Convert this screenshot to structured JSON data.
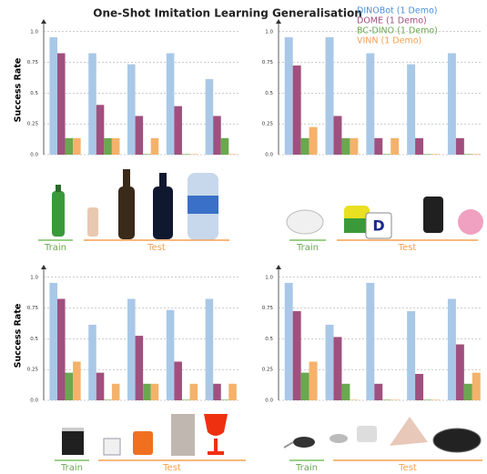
{
  "title": "One-Shot Imitation Learning Generalisation",
  "legend": [
    {
      "name": "DINOBot (1 Demo)",
      "color": "#a9c8e8",
      "text_color": "#4a90d9"
    },
    {
      "name": "DOME (1 Demo)",
      "color": "#a0507e",
      "text_color": "#a0507e"
    },
    {
      "name": "BC-DINO (1 Demo)",
      "color": "#6aa84f",
      "text_color": "#6aa84f"
    },
    {
      "name": "VINN (1 Demo)",
      "color": "#f4b26b",
      "text_color": "#f4a050"
    }
  ],
  "chart_data": [
    {
      "type": "bar",
      "ylabel": "Success Rate",
      "ylim": [
        0,
        1.05
      ],
      "yticks": [
        {
          "value": 0,
          "label": "0.0"
        },
        0.25,
        0.5,
        0.75,
        {
          "value": 1,
          "label": "1.0"
        }
      ],
      "grid": true,
      "series": [
        {
          "values": [
            0.95,
            0.82,
            0.73,
            0.82,
            0.61
          ]
        },
        {
          "values": [
            0.82,
            0.4,
            0.31,
            0.39,
            0.31
          ]
        },
        {
          "values": [
            0.13,
            0.13,
            0,
            0,
            0.13
          ]
        },
        {
          "values": [
            0.13,
            0.13,
            0.13,
            0,
            0
          ]
        }
      ],
      "train_label": "Train",
      "test_label": "Test"
    },
    {
      "type": "bar",
      "ylim": [
        0,
        1.05
      ],
      "yticks": [
        {
          "value": 0,
          "label": "0.0"
        },
        0.25,
        0.5,
        0.75,
        {
          "value": 1,
          "label": "1.0"
        }
      ],
      "grid": true,
      "series": [
        {
          "values": [
            0.95,
            0.95,
            0.82,
            0.73,
            0.82
          ]
        },
        {
          "values": [
            0.72,
            0.31,
            0.13,
            0.13,
            0.13
          ]
        },
        {
          "values": [
            0.13,
            0.13,
            0,
            0,
            0
          ]
        },
        {
          "values": [
            0.22,
            0.13,
            0.13,
            0,
            0
          ]
        }
      ],
      "train_label": "Train",
      "test_label": "Test"
    },
    {
      "type": "bar",
      "ylabel": "Success Rate",
      "ylim": [
        0,
        1.05
      ],
      "yticks": [
        {
          "value": 0,
          "label": "0.0"
        },
        0.25,
        0.5,
        0.75,
        {
          "value": 1,
          "label": "1.0"
        }
      ],
      "grid": true,
      "series": [
        {
          "values": [
            0.95,
            0.61,
            0.82,
            0.73,
            0.82
          ]
        },
        {
          "values": [
            0.82,
            0.22,
            0.52,
            0.31,
            0.13
          ]
        },
        {
          "values": [
            0.22,
            0,
            0.13,
            0,
            0
          ]
        },
        {
          "values": [
            0.31,
            0.13,
            0.13,
            0.13,
            0.13
          ]
        }
      ],
      "train_label": "Train",
      "test_label": "Test"
    },
    {
      "type": "bar",
      "ylim": [
        0,
        1.05
      ],
      "yticks": [
        {
          "value": 0,
          "label": "0.0"
        },
        0.25,
        0.5,
        0.75,
        {
          "value": 1,
          "label": "1.0"
        }
      ],
      "grid": true,
      "series": [
        {
          "values": [
            0.95,
            0.61,
            0.95,
            0.72,
            0.82
          ]
        },
        {
          "values": [
            0.72,
            0.51,
            0.13,
            0.21,
            0.45
          ]
        },
        {
          "values": [
            0.22,
            0.13,
            0,
            0,
            0.13
          ]
        },
        {
          "values": [
            0.31,
            0,
            0,
            0,
            0.22
          ]
        }
      ],
      "train_label": "Train",
      "test_label": "Test"
    }
  ]
}
